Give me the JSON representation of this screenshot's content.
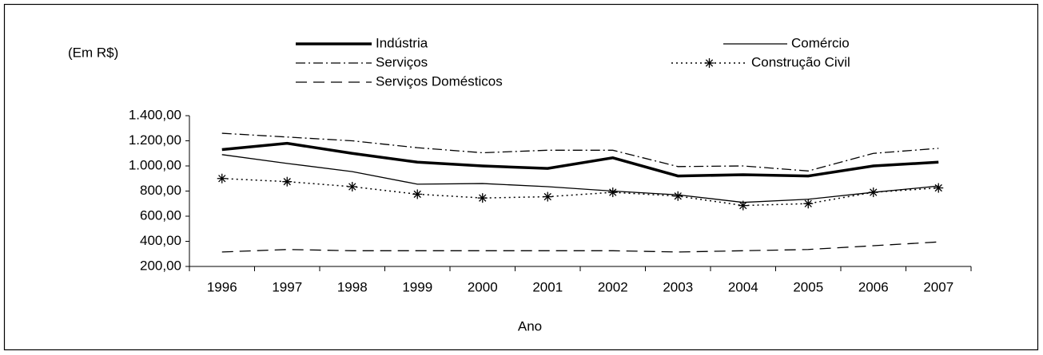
{
  "chart_data": {
    "type": "line",
    "y_unit_label": "(Em R$)",
    "x_label": "Ano",
    "categories": [
      "1996",
      "1997",
      "1998",
      "1999",
      "2000",
      "2001",
      "2002",
      "2003",
      "2004",
      "2005",
      "2006",
      "2007"
    ],
    "ylim": [
      200,
      1400
    ],
    "yticks": [
      {
        "value": 200,
        "label": "200,00"
      },
      {
        "value": 400,
        "label": "400,00"
      },
      {
        "value": 600,
        "label": "600,00"
      },
      {
        "value": 800,
        "label": "800,00"
      },
      {
        "value": 1000,
        "label": "1.000,00"
      },
      {
        "value": 1200,
        "label": "1.200,00"
      },
      {
        "value": 1400,
        "label": "1.400,00"
      }
    ],
    "series": [
      {
        "name": "Indústria",
        "color": "#000000",
        "line_style": "solid",
        "width": 3.5,
        "values": [
          1130,
          1180,
          1100,
          1030,
          1000,
          980,
          1065,
          920,
          930,
          920,
          1000,
          1030
        ]
      },
      {
        "name": "Comércio",
        "color": "#000000",
        "line_style": "solid",
        "width": 1.3,
        "values": [
          1090,
          1020,
          955,
          855,
          860,
          835,
          800,
          770,
          710,
          735,
          790,
          840
        ]
      },
      {
        "name": "Serviços",
        "color": "#000000",
        "line_style": "dashdot",
        "width": 1.3,
        "values": [
          1260,
          1230,
          1200,
          1145,
          1105,
          1125,
          1125,
          995,
          1000,
          960,
          1100,
          1140
        ]
      },
      {
        "name": "Construção Civil",
        "color": "#000000",
        "line_style": "dotted",
        "width": 1.5,
        "marker": "asterisk",
        "values": [
          900,
          875,
          835,
          775,
          745,
          755,
          790,
          760,
          685,
          700,
          790,
          825
        ]
      },
      {
        "name": "Serviços Domésticos",
        "color": "#000000",
        "line_style": "dashed",
        "width": 1.3,
        "values": [
          315,
          335,
          325,
          325,
          325,
          325,
          325,
          315,
          325,
          335,
          365,
          395
        ]
      }
    ]
  }
}
